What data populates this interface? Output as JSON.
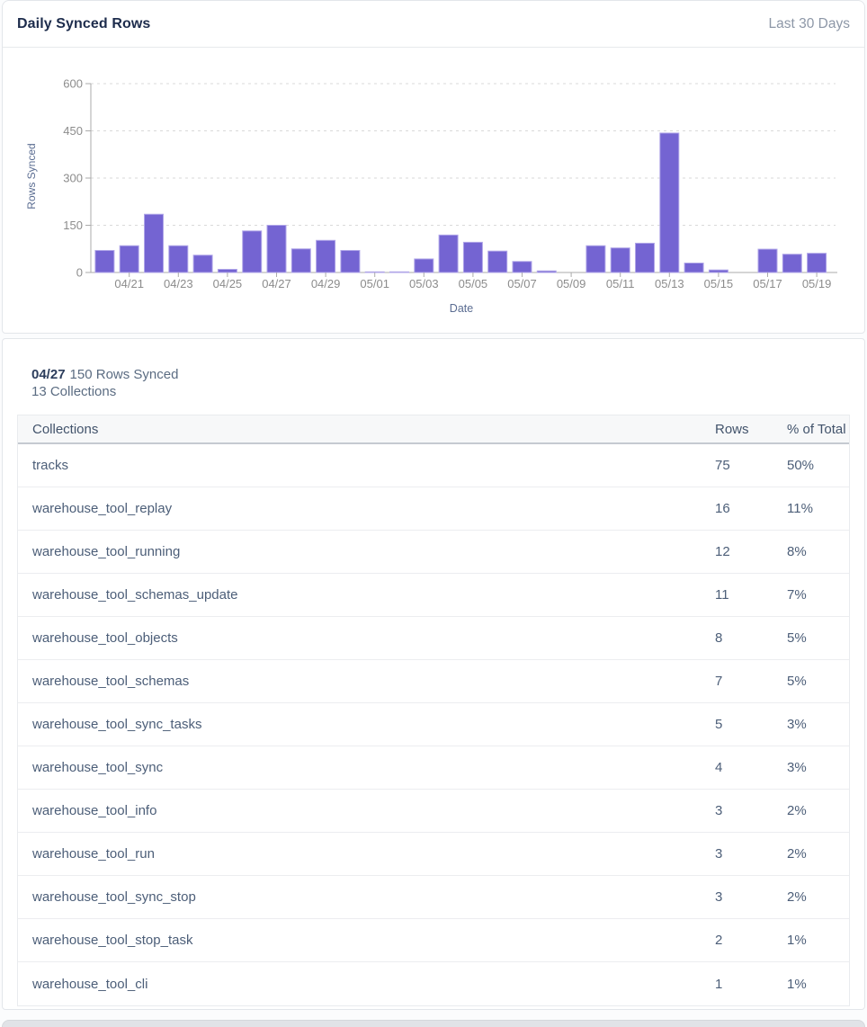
{
  "header": {
    "title": "Daily Synced Rows",
    "range": "Last 30 Days"
  },
  "chart_data": {
    "type": "bar",
    "title": "Daily Synced Rows",
    "xlabel": "Date",
    "ylabel": "Rows Synced",
    "ylim": [
      0,
      600
    ],
    "yticks": [
      0,
      150,
      300,
      450,
      600
    ],
    "grid": "horizontal-dashed",
    "legend": "none",
    "bar_color": "#7464d2",
    "bar_edge_color": "#b0a6e8",
    "categories": [
      "04/20",
      "04/21",
      "04/22",
      "04/23",
      "04/24",
      "04/25",
      "04/26",
      "04/27",
      "04/28",
      "04/29",
      "04/30",
      "05/01",
      "05/02",
      "05/03",
      "05/04",
      "05/05",
      "05/06",
      "05/07",
      "05/08",
      "05/09",
      "05/10",
      "05/11",
      "05/12",
      "05/13",
      "05/14",
      "05/15",
      "05/16",
      "05/17",
      "05/18",
      "05/19"
    ],
    "values": [
      70,
      85,
      185,
      85,
      55,
      10,
      132,
      150,
      75,
      102,
      70,
      2,
      2,
      43,
      119,
      96,
      68,
      35,
      5,
      0,
      85,
      78,
      93,
      443,
      30,
      8,
      0,
      74,
      58,
      61
    ],
    "x_axis_tick_labels": [
      "04/21",
      "04/23",
      "04/25",
      "04/27",
      "04/29",
      "05/01",
      "05/03",
      "05/05",
      "05/07",
      "05/09",
      "05/11",
      "05/13",
      "05/15",
      "05/17",
      "05/19"
    ]
  },
  "detail": {
    "date": "04/27",
    "rows_synced": "150 Rows Synced",
    "collections": "13 Collections"
  },
  "table": {
    "columns": {
      "collections": "Collections",
      "rows": "Rows",
      "pct": "% of Total"
    },
    "rows": [
      {
        "collection": "tracks",
        "rows": "75",
        "pct": "50%"
      },
      {
        "collection": "warehouse_tool_replay",
        "rows": "16",
        "pct": "11%"
      },
      {
        "collection": "warehouse_tool_running",
        "rows": "12",
        "pct": "8%"
      },
      {
        "collection": "warehouse_tool_schemas_update",
        "rows": "11",
        "pct": "7%"
      },
      {
        "collection": "warehouse_tool_objects",
        "rows": "8",
        "pct": "5%"
      },
      {
        "collection": "warehouse_tool_schemas",
        "rows": "7",
        "pct": "5%"
      },
      {
        "collection": "warehouse_tool_sync_tasks",
        "rows": "5",
        "pct": "3%"
      },
      {
        "collection": "warehouse_tool_sync",
        "rows": "4",
        "pct": "3%"
      },
      {
        "collection": "warehouse_tool_info",
        "rows": "3",
        "pct": "2%"
      },
      {
        "collection": "warehouse_tool_run",
        "rows": "3",
        "pct": "2%"
      },
      {
        "collection": "warehouse_tool_sync_stop",
        "rows": "3",
        "pct": "2%"
      },
      {
        "collection": "warehouse_tool_stop_task",
        "rows": "2",
        "pct": "1%"
      },
      {
        "collection": "warehouse_tool_cli",
        "rows": "1",
        "pct": "1%"
      }
    ]
  },
  "colors": {
    "title_text": "#1d2c4c",
    "muted_text": "#8d97a7",
    "axis_tick_text": "#8c8c8c",
    "axis_title_text": "#5b6d92",
    "axis_line": "#ababab",
    "gridline": "#d9d9d9",
    "table_text": "#4c5e78",
    "header_border": "#c5cad1"
  }
}
